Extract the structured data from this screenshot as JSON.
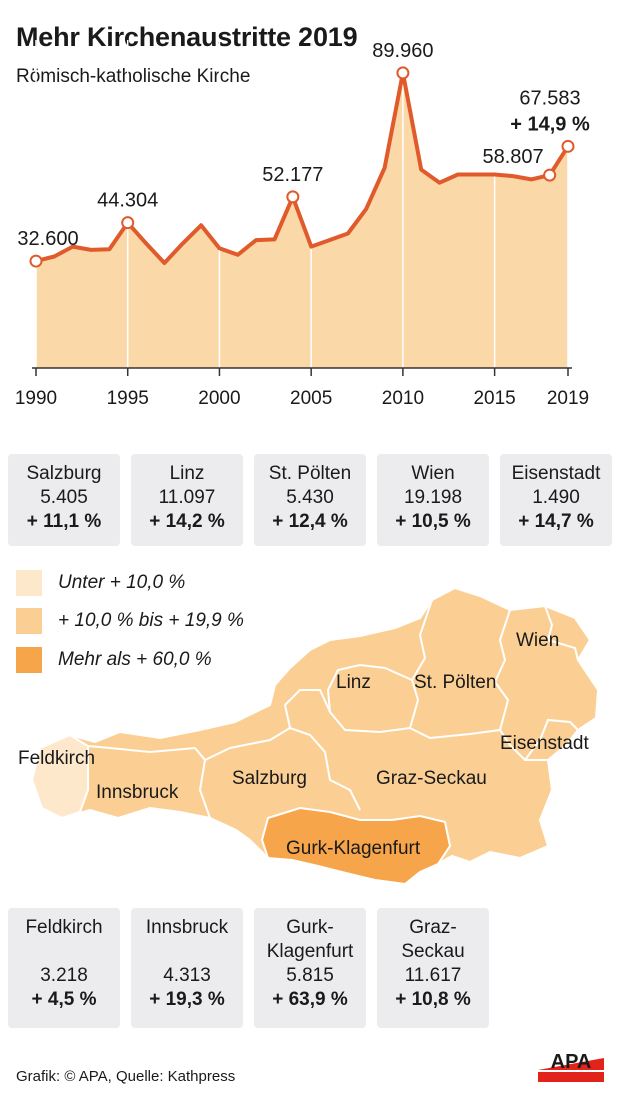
{
  "header": {
    "title": "Mehr Kirchenaustritte 2019",
    "subtitle": "Römisch-katholische Kirche"
  },
  "chart_data": {
    "type": "area",
    "title": "Mehr Kirchenaustritte 2019",
    "subtitle": "Römisch-katholische Kirche",
    "x": [
      1990,
      1991,
      1992,
      1993,
      1994,
      1995,
      1996,
      1997,
      1998,
      1999,
      2000,
      2001,
      2002,
      2003,
      2004,
      2005,
      2006,
      2007,
      2008,
      2009,
      2010,
      2011,
      2012,
      2013,
      2014,
      2015,
      2016,
      2017,
      2018,
      2019
    ],
    "values": [
      32600,
      34000,
      37000,
      36000,
      36200,
      44304,
      38000,
      32000,
      38000,
      43500,
      36500,
      34500,
      39000,
      39200,
      52177,
      37000,
      39000,
      41000,
      48500,
      61000,
      89960,
      60500,
      56500,
      59000,
      59000,
      59000,
      58500,
      57500,
      58807,
      67583
    ],
    "xticks": [
      "1990",
      "1995",
      "2000",
      "2005",
      "2010",
      "2015",
      "2019"
    ],
    "ylim": [
      0,
      100000
    ],
    "grid": "vertical",
    "annotations": [
      {
        "x": 1990,
        "label": "32.600"
      },
      {
        "x": 1995,
        "label": "44.304"
      },
      {
        "x": 2004,
        "label": "52.177"
      },
      {
        "x": 2010,
        "label": "89.960"
      },
      {
        "x": 2018,
        "label": "58.807"
      },
      {
        "x": 2019,
        "label": "67.583",
        "change": "+ 14,9 %"
      }
    ],
    "line_color": "#e05a2b",
    "fill_color": "#fbd8a8"
  },
  "dioceses_top": [
    {
      "name": "Salzburg",
      "value": "5.405",
      "change": "+ 11,1 %"
    },
    {
      "name": "Linz",
      "value": "11.097",
      "change": "+ 14,2 %"
    },
    {
      "name": "St. Pölten",
      "value": "5.430",
      "change": "+ 12,4 %"
    },
    {
      "name": "Wien",
      "value": "19.198",
      "change": "+ 10,5 %"
    },
    {
      "name": "Eisenstadt",
      "value": "1.490",
      "change": "+ 14,7 %"
    }
  ],
  "dioceses_bottom": [
    {
      "name": "Feldkirch",
      "value": "3.218",
      "change": "+ 4,5 %"
    },
    {
      "name": "Innsbruck",
      "value": "4.313",
      "change": "+ 19,3 %"
    },
    {
      "name": "Gurk-\nKlagenfurt",
      "value": "5.815",
      "change": "+ 63,9 %"
    },
    {
      "name": "Graz-\nSeckau",
      "value": "11.617",
      "change": "+ 10,8 %"
    }
  ],
  "legend": [
    {
      "label": "Unter + 10,0 %",
      "color": "#fde8cc"
    },
    {
      "label": "+ 10,0 % bis + 19,9 %",
      "color": "#fbcf94"
    },
    {
      "label": "Mehr als + 60,0 %",
      "color": "#f7a54a"
    }
  ],
  "map": {
    "labels": {
      "feldkirch": "Feldkirch",
      "innsbruck": "Innsbruck",
      "salzburg": "Salzburg",
      "linz": "Linz",
      "st_poelten": "St. Pölten",
      "wien": "Wien",
      "eisenstadt": "Eisenstadt",
      "graz": "Graz-Seckau",
      "gurk": "Gurk-Klagenfurt"
    },
    "colors": {
      "feldkirch": "#fde8cc",
      "mid": "#fbcf94",
      "gurk": "#f7a54a"
    }
  },
  "footer": {
    "credit": "Grafik: © APA, Quelle: Kathpress",
    "logo": "APA"
  }
}
